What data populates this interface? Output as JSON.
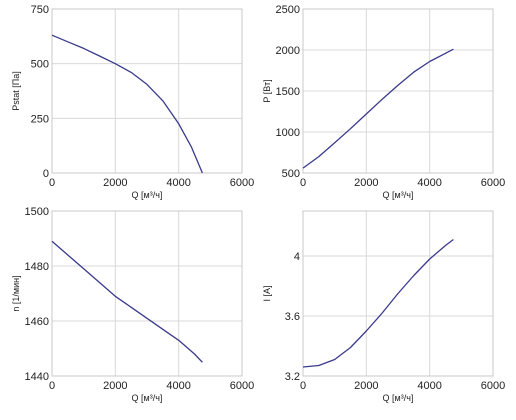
{
  "chart_data": [
    {
      "type": "line",
      "xlabel": "Q [м³/ч]",
      "ylabel": "Pstat [Па]",
      "xlim": [
        0,
        6000
      ],
      "ylim": [
        0,
        750
      ],
      "xticks": [
        0,
        2000,
        4000,
        6000
      ],
      "yticks": [
        0,
        250,
        500,
        750
      ],
      "grid": true,
      "color": "#3a3a8c",
      "series": [
        {
          "x": [
            0,
            500,
            1000,
            1500,
            2000,
            2500,
            3000,
            3500,
            4000,
            4400,
            4750
          ],
          "y": [
            630,
            600,
            570,
            535,
            500,
            460,
            405,
            330,
            225,
            120,
            0
          ]
        }
      ]
    },
    {
      "type": "line",
      "xlabel": "Q [м³/ч]",
      "ylabel": "P [Вт]",
      "xlim": [
        0,
        6000
      ],
      "ylim": [
        500,
        2500
      ],
      "xticks": [
        0,
        2000,
        4000,
        6000
      ],
      "yticks": [
        500,
        1000,
        1500,
        2000,
        2500
      ],
      "grid": true,
      "color": "#3a3a8c",
      "series": [
        {
          "x": [
            0,
            500,
            1000,
            1500,
            2000,
            2500,
            3000,
            3500,
            4000,
            4500,
            4750
          ],
          "y": [
            560,
            700,
            870,
            1040,
            1220,
            1400,
            1570,
            1730,
            1860,
            1960,
            2010
          ]
        }
      ]
    },
    {
      "type": "line",
      "xlabel": "Q [м³/ч]",
      "ylabel": "n [1/мин]",
      "xlim": [
        0,
        6000
      ],
      "ylim": [
        1440,
        1500
      ],
      "xticks": [
        0,
        2000,
        4000,
        6000
      ],
      "yticks": [
        1440,
        1460,
        1480,
        1500
      ],
      "grid": true,
      "color": "#3a3a8c",
      "series": [
        {
          "x": [
            0,
            500,
            1000,
            1500,
            2000,
            2500,
            3000,
            3500,
            4000,
            4500,
            4750
          ],
          "y": [
            1489,
            1484,
            1479,
            1474,
            1469,
            1465,
            1461,
            1457,
            1453,
            1448,
            1445
          ]
        }
      ]
    },
    {
      "type": "line",
      "xlabel": "Q [м³/ч]",
      "ylabel": "I [А]",
      "xlim": [
        0,
        6000
      ],
      "ylim": [
        3.2,
        4.3
      ],
      "xticks": [
        0,
        2000,
        4000,
        6000
      ],
      "yticks": [
        3.2,
        3.6,
        4
      ],
      "grid": true,
      "color": "#3a3a8c",
      "series": [
        {
          "x": [
            0,
            500,
            1000,
            1500,
            2000,
            2500,
            3000,
            3500,
            4000,
            4500,
            4750
          ],
          "y": [
            3.26,
            3.27,
            3.31,
            3.39,
            3.5,
            3.62,
            3.75,
            3.87,
            3.98,
            4.07,
            4.11
          ]
        }
      ]
    }
  ]
}
